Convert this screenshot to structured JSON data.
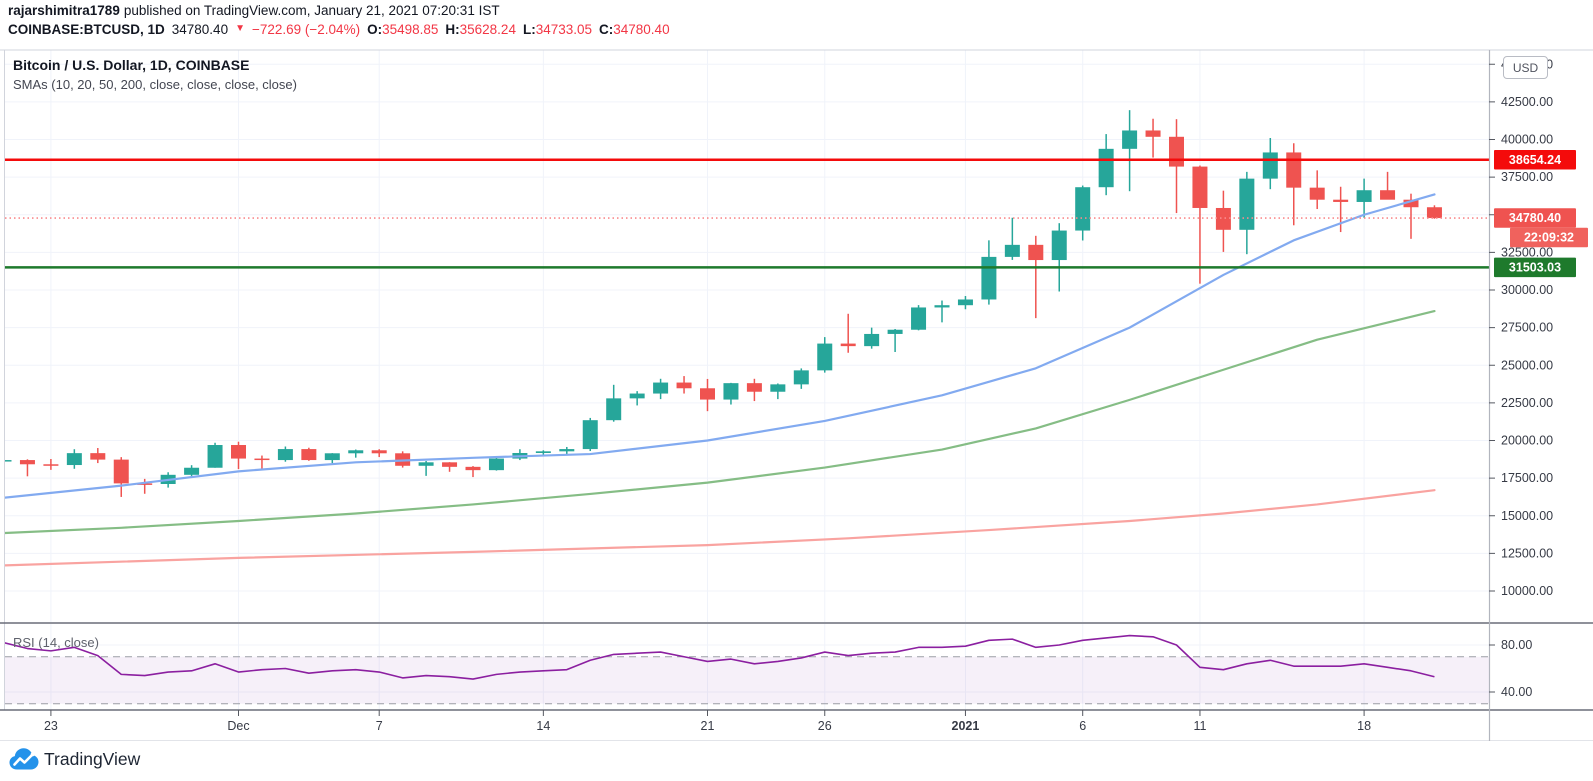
{
  "header": {
    "username": "rajarshimitra1789",
    "published_text": "published on TradingView.com, January 21, 2021 07:20:31 IST"
  },
  "symbol_bar": {
    "symbol": "COINBASE:BTCUSD, 1D",
    "last": "34780.40",
    "down_arrow": "▼",
    "change": "−722.69 (−2.04%)",
    "open_label": "O:",
    "open": "35498.85",
    "high_label": "H:",
    "high": "35628.24",
    "low_label": "L:",
    "low": "34733.05",
    "close_label": "C:",
    "close": "34780.40"
  },
  "legend": {
    "title": "Bitcoin / U.S. Dollar, 1D, COINBASE",
    "indicator": "SMAs (10, 20, 50, 200, close, close, close, close)"
  },
  "price_axis": {
    "currency_button": "USD",
    "ticks": [
      {
        "label": "45000.00",
        "value": 45000
      },
      {
        "label": "42500.00",
        "value": 42500
      },
      {
        "label": "40000.00",
        "value": 40000
      },
      {
        "label": "37500.00",
        "value": 37500
      },
      {
        "label": "35000.00",
        "value": 35000
      },
      {
        "label": "32500.00",
        "value": 32500
      },
      {
        "label": "30000.00",
        "value": 30000
      },
      {
        "label": "27500.00",
        "value": 27500
      },
      {
        "label": "25000.00",
        "value": 25000
      },
      {
        "label": "22500.00",
        "value": 22500
      },
      {
        "label": "20000.00",
        "value": 20000
      },
      {
        "label": "17500.00",
        "value": 17500
      },
      {
        "label": "15000.00",
        "value": 15000
      },
      {
        "label": "12500.00",
        "value": 12500
      },
      {
        "label": "10000.00",
        "value": 10000
      }
    ],
    "badges": [
      {
        "id": "resistance",
        "label": "38654.24",
        "value": 38654.24,
        "bg": "#f40b0b",
        "inset": false
      },
      {
        "id": "last-price",
        "label": "34780.40",
        "value": 34780.4,
        "bg": "#ef5350",
        "inset": false
      },
      {
        "id": "countdown",
        "label": "22:09:32",
        "value": null,
        "bg": "#f0625d",
        "inset": true
      },
      {
        "id": "support",
        "label": "31503.03",
        "value": 31503.03,
        "bg": "#1e7a2c",
        "inset": false
      }
    ]
  },
  "time_axis": {
    "ticks": [
      {
        "label": "23",
        "i": 2,
        "bold": false
      },
      {
        "label": "Dec",
        "i": 10,
        "bold": false
      },
      {
        "label": "7",
        "i": 16,
        "bold": false
      },
      {
        "label": "14",
        "i": 23,
        "bold": false
      },
      {
        "label": "21",
        "i": 30,
        "bold": false
      },
      {
        "label": "26",
        "i": 35,
        "bold": false
      },
      {
        "label": "2021",
        "i": 41,
        "bold": true
      },
      {
        "label": "6",
        "i": 46,
        "bold": false
      },
      {
        "label": "11",
        "i": 51,
        "bold": false
      },
      {
        "label": "18",
        "i": 58,
        "bold": false
      }
    ]
  },
  "rsi_pane": {
    "label": "RSI (14, close)",
    "axis_ticks": [
      {
        "label": "80.00",
        "value": 80
      },
      {
        "label": "40.00",
        "value": 40
      }
    ]
  },
  "footer": {
    "brand": "TradingView"
  },
  "colors": {
    "up": "#26a69a",
    "down": "#ef5350",
    "text_primary": "#131722",
    "red_text": "#f23645",
    "axis_text": "#363a45",
    "sma_fast": "#82aaf0",
    "sma50": "#85bd85",
    "sma200": "#f9a3a0",
    "resistance_line": "#f40b0b",
    "support_line": "#1e7a2c",
    "last_price_line": "#f98a8d",
    "rsi_line": "#8b1fa0",
    "rsi_band_fill": "rgba(143,64,179,0.08)",
    "rsi_dash": "#9b9ea6",
    "grid": "#f0f3fa",
    "border_strong": "#6a6d78",
    "border_light": "#d1d4dc",
    "tick_mark": "#555860",
    "logo_blue": "#2492ea"
  },
  "chart_data": {
    "type": "candlestick",
    "title": "Bitcoin / U.S. Dollar, 1D, COINBASE",
    "xlabel": "",
    "ylabel": "",
    "ylim": [
      7900,
      45900
    ],
    "rsi_ylim_hint": "80 at y-label top, 40 at y-label bottom, dashed bands 70/30",
    "candles": [
      [
        "Nov 21",
        18650,
        18965,
        18300,
        18700
      ],
      [
        "Nov 22",
        18700,
        18750,
        17620,
        18420
      ],
      [
        "Nov 23",
        18420,
        18770,
        18050,
        18370
      ],
      [
        "Nov 24",
        18370,
        19420,
        18120,
        19160
      ],
      [
        "Nov 25",
        19160,
        19500,
        18500,
        18730
      ],
      [
        "Nov 26",
        18730,
        18895,
        16250,
        17150
      ],
      [
        "Nov 27",
        17150,
        17450,
        16460,
        17110
      ],
      [
        "Nov 28",
        17110,
        17890,
        16870,
        17720
      ],
      [
        "Nov 29",
        17720,
        18360,
        17520,
        18190
      ],
      [
        "Nov 30",
        18190,
        19850,
        18190,
        19700
      ],
      [
        "Dec 1",
        19700,
        19920,
        18100,
        18800
      ],
      [
        "Dec 2",
        18800,
        19000,
        18100,
        18700
      ],
      [
        "Dec 3",
        18700,
        19600,
        18590,
        19430
      ],
      [
        "Dec 4",
        19430,
        19520,
        18650,
        18700
      ],
      [
        "Dec 5",
        18700,
        19160,
        18500,
        19150
      ],
      [
        "Dec 6",
        19150,
        19400,
        18860,
        19350
      ],
      [
        "Dec 7",
        19350,
        19420,
        18900,
        19150
      ],
      [
        "Dec 8",
        19150,
        19280,
        18200,
        18320
      ],
      [
        "Dec 9",
        18320,
        18640,
        17650,
        18550
      ],
      [
        "Dec 10",
        18550,
        18560,
        17920,
        18250
      ],
      [
        "Dec 11",
        18250,
        18300,
        17570,
        18030
      ],
      [
        "Dec 12",
        18030,
        18950,
        18000,
        18800
      ],
      [
        "Dec 13",
        18800,
        19420,
        18700,
        19170
      ],
      [
        "Dec 14",
        19170,
        19350,
        19000,
        19280
      ],
      [
        "Dec 15",
        19280,
        19570,
        19050,
        19430
      ],
      [
        "Dec 16",
        19430,
        21500,
        19300,
        21350
      ],
      [
        "Dec 17",
        21350,
        23700,
        21250,
        22800
      ],
      [
        "Dec 18",
        22800,
        23280,
        22330,
        23120
      ],
      [
        "Dec 19",
        23120,
        24100,
        22750,
        23850
      ],
      [
        "Dec 20",
        23850,
        24280,
        23120,
        23470
      ],
      [
        "Dec 21",
        23470,
        24090,
        21950,
        22720
      ],
      [
        "Dec 22",
        22720,
        23830,
        22390,
        23810
      ],
      [
        "Dec 23",
        23810,
        24100,
        22620,
        23240
      ],
      [
        "Dec 24",
        23240,
        23790,
        22750,
        23730
      ],
      [
        "Dec 25",
        23730,
        24790,
        23430,
        24660
      ],
      [
        "Dec 26",
        24660,
        26870,
        24510,
        26440
      ],
      [
        "Dec 27",
        26440,
        28420,
        25830,
        26270
      ],
      [
        "Dec 28",
        26270,
        27500,
        26100,
        27080
      ],
      [
        "Dec 29",
        27080,
        27410,
        25880,
        27360
      ],
      [
        "Dec 30",
        27360,
        28996,
        27320,
        28840
      ],
      [
        "Dec 31",
        28840,
        29300,
        27850,
        28990
      ],
      [
        "Jan 1",
        28990,
        29600,
        28720,
        29370
      ],
      [
        "Jan 2",
        29370,
        33300,
        29030,
        32200
      ],
      [
        "Jan 3",
        32200,
        34800,
        32000,
        33000
      ],
      [
        "Jan 4",
        33000,
        33600,
        28130,
        31990
      ],
      [
        "Jan 5",
        31990,
        34440,
        29900,
        33950
      ],
      [
        "Jan 6",
        33950,
        36940,
        33290,
        36830
      ],
      [
        "Jan 7",
        36830,
        40360,
        36300,
        39380
      ],
      [
        "Jan 8",
        39380,
        41950,
        36565,
        40600
      ],
      [
        "Jan 9",
        40600,
        41380,
        38800,
        40180
      ],
      [
        "Jan 10",
        40180,
        41350,
        35111,
        38200
      ],
      [
        "Jan 11",
        38200,
        38270,
        30420,
        35450
      ],
      [
        "Jan 12",
        35450,
        36600,
        32531,
        34000
      ],
      [
        "Jan 13",
        34000,
        37850,
        32380,
        37400
      ],
      [
        "Jan 14",
        37400,
        40100,
        36700,
        39140
      ],
      [
        "Jan 15",
        39140,
        39750,
        34300,
        36800
      ],
      [
        "Jan 16",
        36800,
        37950,
        35380,
        36000
      ],
      [
        "Jan 17",
        36000,
        36860,
        33850,
        35850
      ],
      [
        "Jan 18",
        35850,
        37400,
        34800,
        36630
      ],
      [
        "Jan 19",
        36630,
        37850,
        36200,
        36000
      ],
      [
        "Jan 20",
        36000,
        36400,
        33400,
        35500
      ],
      [
        "Jan 21",
        35498.85,
        35628.24,
        34733.05,
        34780.4
      ]
    ],
    "overlays": [
      {
        "name": "sma-fast-blue",
        "color_key": "sma_fast",
        "points": [
          [
            0,
            16200
          ],
          [
            5,
            17000
          ],
          [
            10,
            17950
          ],
          [
            15,
            18550
          ],
          [
            20,
            18850
          ],
          [
            25,
            19100
          ],
          [
            30,
            20000
          ],
          [
            35,
            21300
          ],
          [
            40,
            23000
          ],
          [
            44,
            24800
          ],
          [
            48,
            27500
          ],
          [
            52,
            31000
          ],
          [
            55,
            33300
          ],
          [
            58,
            35000
          ],
          [
            61,
            36350
          ]
        ]
      },
      {
        "name": "sma-50-green",
        "color_key": "sma50",
        "points": [
          [
            0,
            13850
          ],
          [
            5,
            14200
          ],
          [
            10,
            14650
          ],
          [
            15,
            15150
          ],
          [
            20,
            15750
          ],
          [
            25,
            16450
          ],
          [
            30,
            17200
          ],
          [
            35,
            18200
          ],
          [
            40,
            19400
          ],
          [
            44,
            20800
          ],
          [
            48,
            22700
          ],
          [
            52,
            24700
          ],
          [
            56,
            26700
          ],
          [
            61,
            28600
          ]
        ]
      },
      {
        "name": "sma-200-salmon",
        "color_key": "sma200",
        "points": [
          [
            0,
            11700
          ],
          [
            10,
            12200
          ],
          [
            20,
            12600
          ],
          [
            30,
            13050
          ],
          [
            36,
            13500
          ],
          [
            42,
            14050
          ],
          [
            48,
            14650
          ],
          [
            52,
            15150
          ],
          [
            56,
            15750
          ],
          [
            61,
            16700
          ]
        ]
      }
    ],
    "levels": [
      {
        "id": "resistance",
        "value": 38654.24,
        "style": "solid",
        "color_key": "resistance_line",
        "width": 2.4
      },
      {
        "id": "last-price",
        "value": 34780.4,
        "style": "dotted",
        "color_key": "last_price_line",
        "width": 1.6
      },
      {
        "id": "support",
        "value": 31503.03,
        "style": "solid",
        "color_key": "support_line",
        "width": 2.6
      }
    ],
    "rsi": {
      "name": "RSI (14, close)",
      "bands": [
        70,
        30
      ],
      "axis": [
        80,
        40
      ],
      "values": [
        82,
        77,
        75,
        78,
        71,
        55,
        54,
        57,
        58,
        64,
        57,
        59,
        60,
        56,
        58,
        59,
        57,
        52,
        54,
        53,
        51,
        55,
        57,
        58,
        59,
        67,
        72,
        73,
        74,
        70,
        66,
        68,
        64,
        66,
        69,
        74,
        71,
        73,
        74,
        78,
        78,
        79,
        84,
        85,
        78,
        80,
        84,
        86,
        88,
        87,
        80,
        61,
        59,
        64,
        67,
        62,
        62,
        62,
        64,
        61,
        58,
        53
      ]
    }
  }
}
